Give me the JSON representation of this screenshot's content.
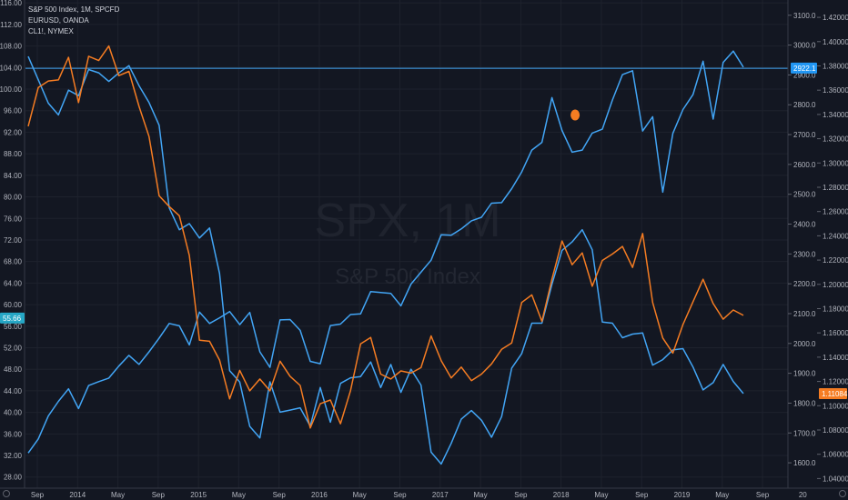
{
  "chart_data": {
    "type": "line",
    "legend": [
      "S&P 500 Index, 1M, SPCFD",
      "EURUSD, OANDA",
      "CL1!, NYMEX"
    ],
    "watermark": {
      "symbol": "SPX, 1M",
      "name": "S&P 500 Index"
    },
    "x_ticks": [
      {
        "label": "Sep",
        "i": 0
      },
      {
        "label": "2014",
        "i": 4
      },
      {
        "label": "May",
        "i": 8
      },
      {
        "label": "Sep",
        "i": 12
      },
      {
        "label": "2015",
        "i": 16
      },
      {
        "label": "May",
        "i": 20
      },
      {
        "label": "Sep",
        "i": 24
      },
      {
        "label": "2016",
        "i": 28
      },
      {
        "label": "May",
        "i": 32
      },
      {
        "label": "Sep",
        "i": 36
      },
      {
        "label": "2017",
        "i": 40
      },
      {
        "label": "May",
        "i": 44
      },
      {
        "label": "Sep",
        "i": 48
      },
      {
        "label": "2018",
        "i": 52
      },
      {
        "label": "May",
        "i": 56
      },
      {
        "label": "Sep",
        "i": 60
      },
      {
        "label": "2019",
        "i": 64
      },
      {
        "label": "May",
        "i": 68
      },
      {
        "label": "Sep",
        "i": 72
      },
      {
        "label": "20",
        "i": 76
      }
    ],
    "y_left": {
      "range": [
        26.1,
        116.2
      ],
      "ticks": [
        "28.00",
        "32.00",
        "36.00",
        "40.00",
        "44.00",
        "48.00",
        "52.00",
        "56.00",
        "60.00",
        "64.00",
        "68.00",
        "72.00",
        "76.00",
        "80.00",
        "84.00",
        "88.00",
        "92.00",
        "96.00",
        "100.00",
        "104.00",
        "108.00",
        "112.00",
        "116.00"
      ]
    },
    "y_right_spx": {
      "range": [
        1518,
        3145
      ],
      "ticks": [
        "1600.0",
        "1700.0",
        "1800.0",
        "1900.0",
        "2000.0",
        "2100.0",
        "2200.0",
        "2300.0",
        "2400.0",
        "2500.0",
        "2600.0",
        "2700.0",
        "2800.0",
        "2900.0",
        "3000.0",
        "3100.0"
      ]
    },
    "y_right_eur": {
      "range": [
        1.0328,
        1.4328
      ],
      "ticks": [
        "1.04000",
        "1.06000",
        "1.08000",
        "1.10000",
        "1.12000",
        "1.14000",
        "1.16000",
        "1.18000",
        "1.20000",
        "1.22000",
        "1.24000",
        "1.26000",
        "1.28000",
        "1.30000",
        "1.32000",
        "1.34000",
        "1.36000",
        "1.38000",
        "1.40000",
        "1.42000"
      ]
    },
    "series": [
      {
        "name": "S&P 500 Index, 1M, SPCFD",
        "color": "#42a5f5",
        "axis": "spx",
        "values": [
          1633,
          1680,
          1757,
          1806,
          1848,
          1782,
          1859,
          1872,
          1884,
          1924,
          1960,
          1930,
          1972,
          2018,
          2067,
          2059,
          1995,
          2105,
          2067,
          2086,
          2107,
          2063,
          2104,
          1972,
          1920,
          2079,
          2080,
          2044,
          1940,
          1932,
          2060,
          2065,
          2097,
          2099,
          2174,
          2171,
          2168,
          2126,
          2199,
          2239,
          2279,
          2364,
          2363,
          2384,
          2411,
          2423,
          2470,
          2472,
          2519,
          2575,
          2648,
          2674,
          2824,
          2714,
          2641,
          2648,
          2705,
          2718,
          2816,
          2901,
          2914,
          2712,
          2760,
          2507,
          2704,
          2784,
          2834,
          2946,
          2752,
          2942,
          2980,
          2926
        ],
        "last_label": "2922.1"
      },
      {
        "name": "EURUSD, OANDA",
        "color": "#42a5f5",
        "axis": "eur",
        "values": [
          1.3878,
          1.3685,
          1.3493,
          1.3396,
          1.36,
          1.3555,
          1.377,
          1.3743,
          1.3672,
          1.3742,
          1.3802,
          1.3637,
          1.3498,
          1.3311,
          1.263,
          1.245,
          1.25,
          1.2382,
          1.2464,
          1.209,
          1.1289,
          1.1195,
          1.083,
          1.0735,
          1.1197,
          1.0947,
          1.0964,
          1.0983,
          1.0832,
          1.115,
          1.0864,
          1.1184,
          1.123,
          1.124,
          1.136,
          1.115,
          1.134,
          1.111,
          1.13,
          1.117,
          1.0617,
          1.052,
          1.069,
          1.089,
          1.096,
          1.088,
          1.074,
          1.091,
          1.131,
          1.143,
          1.168,
          1.168,
          1.2,
          1.228,
          1.235,
          1.245,
          1.2285,
          1.169,
          1.168,
          1.156,
          1.159,
          1.16,
          1.1335,
          1.138,
          1.146,
          1.147,
          1.132,
          1.113,
          1.119,
          1.134,
          1.12,
          1.11
        ],
        "last_label": "1.11084"
      },
      {
        "name": "CL1!, NYMEX",
        "color": "#f57c22",
        "axis": "left",
        "values": [
          93.1,
          100.3,
          101.5,
          101.7,
          105.9,
          97.5,
          106.1,
          105.3,
          108.0,
          102.5,
          103.3,
          96.8,
          91.2,
          80.2,
          78.2,
          76.5,
          69.1,
          53.4,
          53.2,
          49.7,
          42.5,
          47.8,
          44.0,
          46.2,
          44.0,
          49.5,
          46.7,
          45.0,
          37.1,
          41.6,
          42.3,
          37.9,
          44.0,
          52.7,
          53.9,
          47.1,
          46.2,
          47.7,
          47.3,
          48.3,
          54.2,
          49.6,
          46.4,
          48.4,
          45.9,
          47.1,
          49.0,
          51.7,
          52.9,
          60.4,
          61.8,
          56.9,
          64.7,
          71.8,
          67.4,
          69.6,
          63.4,
          68.2,
          69.4,
          70.8,
          66.9,
          73.2,
          60.4,
          53.8,
          51.0,
          56.3,
          60.5,
          64.7,
          60.2,
          57.3,
          59.0,
          58.0
        ],
        "last_label": "55.66"
      }
    ],
    "marker": {
      "series": "CL1!, NYMEX",
      "x_index": 54.3,
      "value": 95.2,
      "color": "#f57c22"
    },
    "horizontal_line": {
      "axis": "spx",
      "value": 2922.1,
      "color": "#42a5f5"
    }
  }
}
